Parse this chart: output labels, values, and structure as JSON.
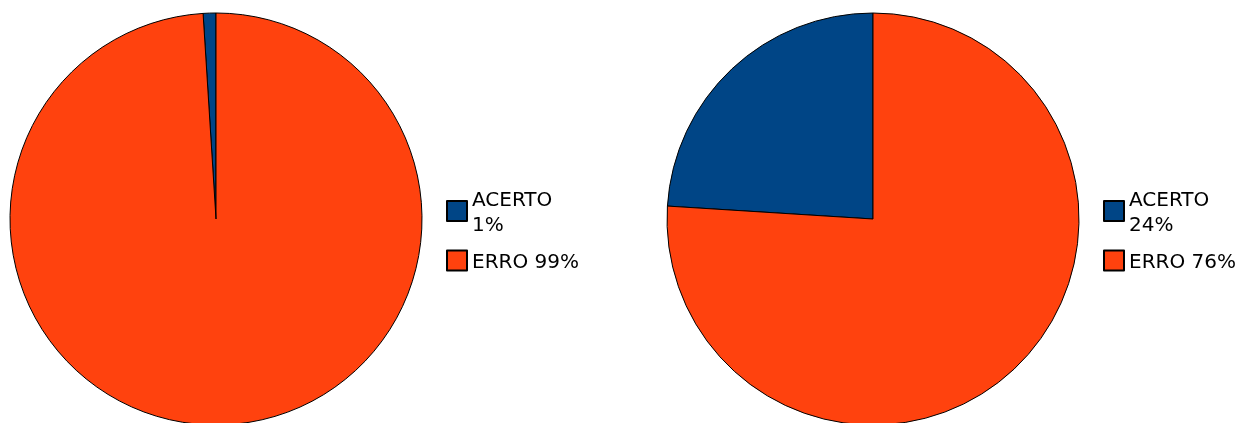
{
  "chart_data": [
    {
      "type": "pie",
      "categories": [
        "ACERTO 1%",
        "ERRO 99%"
      ],
      "values": [
        1,
        99
      ],
      "colors": [
        "#004586",
        "#ff420e"
      ],
      "legend": "right"
    },
    {
      "type": "pie",
      "categories": [
        "ACERTO 24%",
        "ERRO 76%"
      ],
      "values": [
        24,
        76
      ],
      "colors": [
        "#004586",
        "#ff420e"
      ],
      "legend": "right"
    }
  ]
}
